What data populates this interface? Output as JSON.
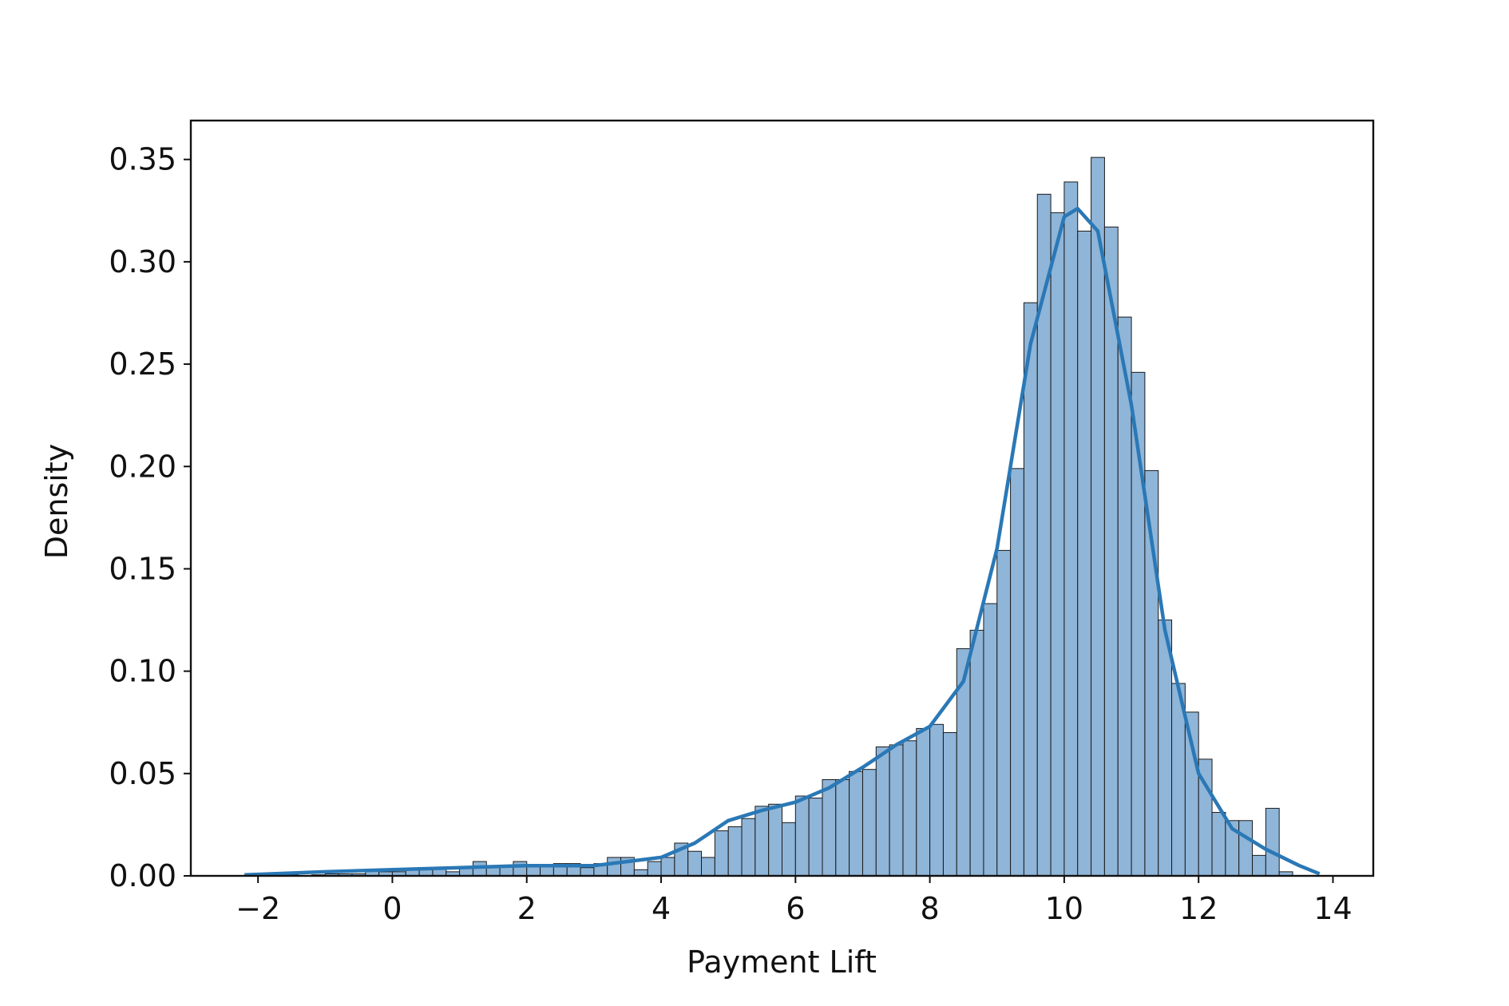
{
  "chart_data": {
    "type": "histogram",
    "xlabel": "Payment Lift",
    "ylabel": "Density",
    "bins": [
      -2.2,
      -2.0,
      -1.8,
      -1.6,
      -1.4,
      -1.2,
      -1.0,
      -0.8,
      -0.6,
      -0.4,
      -0.2,
      0.0,
      0.2,
      0.4,
      0.6,
      0.8,
      1.0,
      1.2,
      1.4,
      1.6,
      1.8,
      2.0,
      2.2,
      2.4,
      2.6,
      2.8,
      3.0,
      3.2,
      3.4,
      3.6,
      3.8,
      4.0,
      4.2,
      4.4,
      4.6,
      4.8,
      5.0,
      5.2,
      5.4,
      5.6,
      5.8,
      6.0,
      6.2,
      6.4,
      6.6,
      6.8,
      7.0,
      7.2,
      7.4,
      7.6,
      7.8,
      8.0,
      8.2,
      8.4,
      8.6,
      8.8,
      9.0,
      9.2,
      9.4,
      9.6,
      9.8,
      10.0,
      10.2,
      10.4,
      10.6,
      10.8,
      11.0,
      11.2,
      11.4,
      11.6,
      11.8,
      12.0,
      12.2,
      12.4,
      12.6,
      12.8,
      13.0,
      13.2,
      13.4,
      13.6,
      13.8
    ],
    "values": [
      0.0005,
      0,
      0,
      0.0005,
      0,
      0.0005,
      0.001,
      0.001,
      0.001,
      0.003,
      0.002,
      0.002,
      0.003,
      0.004,
      0.004,
      0.002,
      0.004,
      0.007,
      0.005,
      0.005,
      0.007,
      0.005,
      0.005,
      0.006,
      0.006,
      0.004,
      0.006,
      0.009,
      0.009,
      0.003,
      0.007,
      0.009,
      0.016,
      0.012,
      0.009,
      0.022,
      0.024,
      0.028,
      0.034,
      0.035,
      0.026,
      0.039,
      0.038,
      0.047,
      0.047,
      0.051,
      0.052,
      0.063,
      0.064,
      0.066,
      0.072,
      0.074,
      0.07,
      0.111,
      0.12,
      0.133,
      0.159,
      0.199,
      0.28,
      0.333,
      0.324,
      0.339,
      0.315,
      0.351,
      0.317,
      0.273,
      0.246,
      0.198,
      0.125,
      0.094,
      0.08,
      0.057,
      0.031,
      0.027,
      0.027,
      0.01,
      0.033,
      0.002,
      0,
      0
    ],
    "color": "#8fb5d8",
    "kde": {
      "color": "#2a78b6",
      "x": [
        -2.2,
        -1,
        0,
        1,
        2,
        3,
        4,
        4.5,
        5,
        5.5,
        6,
        6.5,
        7,
        7.5,
        8,
        8.5,
        9,
        9.5,
        10,
        10.2,
        10.5,
        11,
        11.5,
        12,
        12.5,
        13,
        13.5,
        13.8
      ],
      "values": [
        0.0005,
        0.002,
        0.003,
        0.004,
        0.005,
        0.005,
        0.009,
        0.016,
        0.027,
        0.032,
        0.036,
        0.043,
        0.053,
        0.064,
        0.073,
        0.095,
        0.16,
        0.26,
        0.322,
        0.326,
        0.315,
        0.23,
        0.12,
        0.05,
        0.023,
        0.013,
        0.005,
        0.001
      ]
    },
    "xlim": [
      -3.0,
      14.6
    ],
    "ylim": [
      0,
      0.369
    ],
    "xticks": [
      {
        "value": -2,
        "label": "−2"
      },
      0,
      2,
      4,
      6,
      8,
      10,
      12,
      14
    ],
    "yticks": [
      {
        "value": 0,
        "label": "0.00"
      },
      {
        "value": 0.05,
        "label": "0.05"
      },
      {
        "value": 0.1,
        "label": "0.10"
      },
      {
        "value": 0.15,
        "label": "0.15"
      },
      {
        "value": 0.2,
        "label": "0.20"
      },
      {
        "value": 0.25,
        "label": "0.25"
      },
      {
        "value": 0.3,
        "label": "0.30"
      },
      {
        "value": 0.35,
        "label": "0.35"
      }
    ]
  }
}
